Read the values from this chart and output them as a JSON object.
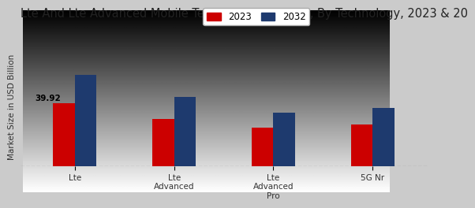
{
  "title": "Lte And Lte Advanced Mobile Technologies Market, By Technology, 2023 & 20",
  "ylabel": "Market Size in USD Billion",
  "categories": [
    "Lte",
    "Lte\nAdvanced",
    "Lte\nAdvanced\nPro",
    "5G Nr"
  ],
  "values_2023": [
    39.92,
    30.0,
    24.5,
    26.5
  ],
  "values_2032": [
    58.0,
    44.0,
    34.0,
    37.0
  ],
  "color_2023": "#cc0000",
  "color_2032": "#1e3a6e",
  "legend_2023": "2023",
  "legend_2032": "2032",
  "annotation_text": "39.92",
  "background_color_top": "#d0d0d0",
  "background_color_bottom": "#f5f5f5",
  "bar_width": 0.22,
  "ylim": [
    0,
    75
  ],
  "title_fontsize": 10.5,
  "label_fontsize": 7.5,
  "tick_fontsize": 7.5,
  "legend_fontsize": 8.5
}
